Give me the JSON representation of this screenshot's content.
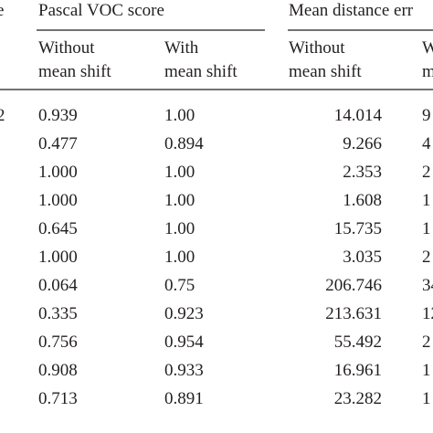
{
  "header": {
    "left_column_fragment": "e",
    "group_1": "Pascal VOC score",
    "group_2": "Mean distance err"
  },
  "subheaders": [
    [
      "Without",
      "mean shift"
    ],
    [
      "With",
      "mean shift"
    ],
    [
      "Without",
      "mean shift"
    ],
    [
      "W",
      "me"
    ]
  ],
  "table": {
    "first_column_fragment": "2",
    "rows": [
      [
        "0.939",
        "1.00",
        "14.014",
        "9"
      ],
      [
        "0.477",
        "0.894",
        "9.266",
        "4"
      ],
      [
        "1.000",
        "1.00",
        "2.353",
        "2"
      ],
      [
        "1.000",
        "1.00",
        "1.608",
        "1"
      ],
      [
        "0.645",
        "1.00",
        "15.735",
        "1"
      ],
      [
        "1.000",
        "1.00",
        "3.035",
        "2"
      ],
      [
        "0.064",
        "0.75",
        "206.746",
        "34"
      ],
      [
        "0.335",
        "0.923",
        "213.631",
        "12"
      ],
      [
        "0.756",
        "0.954",
        "55.492",
        "2"
      ],
      [
        "0.908",
        "0.933",
        "16.961",
        "1"
      ],
      [
        "0.713",
        "0.891",
        "23.282",
        "1"
      ]
    ]
  }
}
